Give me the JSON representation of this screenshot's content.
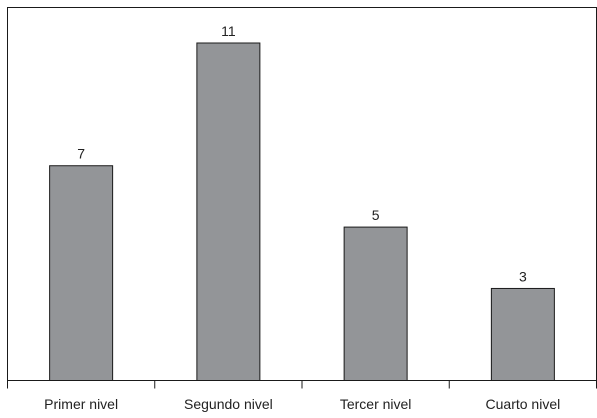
{
  "chart_data": {
    "type": "bar",
    "categories": [
      "Primer nivel",
      "Segundo nivel",
      "Tercer nivel",
      "Cuarto nivel"
    ],
    "values": [
      7,
      11,
      5,
      3
    ],
    "data_labels": [
      "7",
      "11",
      "5",
      "3"
    ],
    "title": "",
    "xlabel": "",
    "ylabel": "",
    "ylim": [
      0,
      11
    ],
    "grid": false,
    "legend": "none",
    "bar_color": "#939598",
    "bar_edge_color": "#1a1a1a"
  }
}
